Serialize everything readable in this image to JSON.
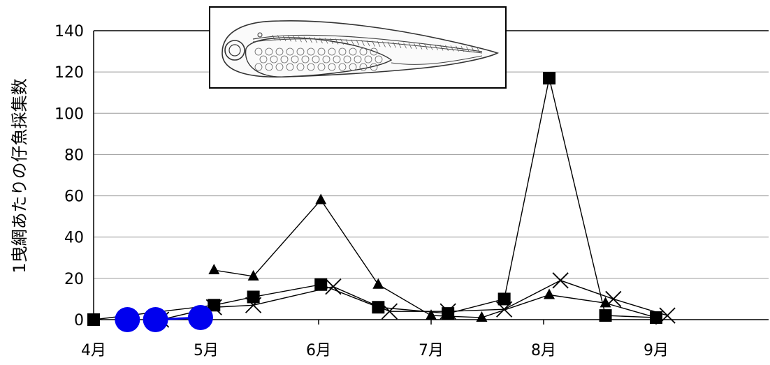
{
  "chart_data": {
    "type": "line",
    "title": "",
    "xlabel": "",
    "ylabel": "1曳網あたりの仔魚採集数",
    "ylim": [
      0,
      140
    ],
    "yticks": [
      0,
      20,
      40,
      60,
      80,
      100,
      120,
      140
    ],
    "xlim": [
      4.0,
      10.0
    ],
    "xticks": [
      {
        "value": 4.0,
        "label": "4月"
      },
      {
        "value": 5.0,
        "label": "5月"
      },
      {
        "value": 6.0,
        "label": "6月"
      },
      {
        "value": 7.0,
        "label": "7月"
      },
      {
        "value": 8.0,
        "label": "8月"
      },
      {
        "value": 9.0,
        "label": "9月"
      }
    ],
    "grid": "horizontal",
    "inset_image": "larval-fish-illustration",
    "series": [
      {
        "marker": "triangle",
        "color": "#000000",
        "x": [
          5.07,
          5.42,
          6.02,
          6.53,
          7.0,
          7.45,
          8.05,
          8.55,
          9.0
        ],
        "y": [
          24,
          21,
          58,
          17,
          2,
          1,
          12,
          8,
          1
        ]
      },
      {
        "marker": "square",
        "color": "#000000",
        "x": [
          4.0,
          5.07,
          5.42,
          6.02,
          6.53,
          7.15,
          7.65,
          8.05,
          8.55,
          9.0
        ],
        "y": [
          0,
          7,
          11,
          17,
          6,
          3,
          10,
          117,
          2,
          1
        ]
      },
      {
        "marker": "cross",
        "color": "#000000",
        "x": [
          4.6,
          5.07,
          5.42,
          6.13,
          6.63,
          7.15,
          7.65,
          8.15,
          8.62,
          9.1
        ],
        "y": [
          0,
          6,
          7,
          16,
          4,
          4,
          5,
          19,
          10,
          2
        ]
      },
      {
        "marker": "circle",
        "color": "#0000ee",
        "x": [
          4.3,
          4.55,
          4.95
        ],
        "y": [
          0,
          0,
          1
        ],
        "connect": [
          [
            1,
            2
          ]
        ]
      }
    ]
  }
}
